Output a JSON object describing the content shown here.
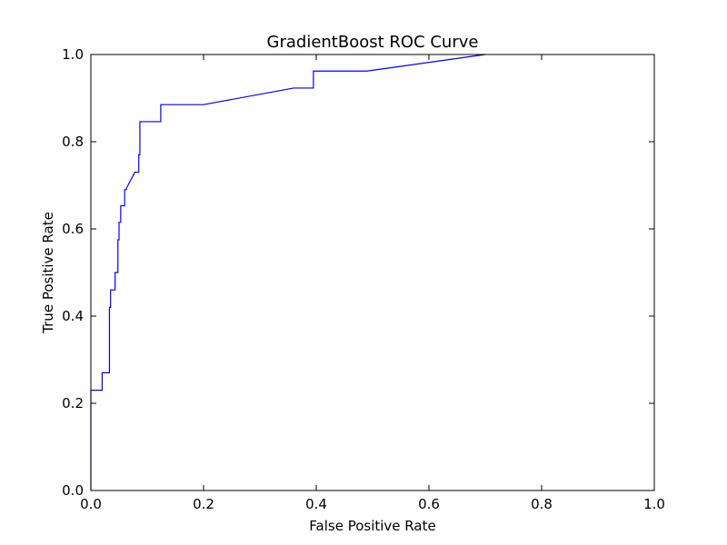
{
  "chart_data": {
    "type": "line",
    "title": "GradientBoost ROC Curve",
    "xlabel": "False Positive Rate",
    "ylabel": "True Positive Rate",
    "xlim": [
      0.0,
      1.0
    ],
    "ylim": [
      0.0,
      1.0
    ],
    "xticks": [
      0.0,
      0.2,
      0.4,
      0.6,
      0.8,
      1.0
    ],
    "yticks": [
      0.0,
      0.2,
      0.4,
      0.6,
      0.8,
      1.0
    ],
    "xtick_labels": [
      "0.0",
      "0.2",
      "0.4",
      "0.6",
      "0.8",
      "1.0"
    ],
    "ytick_labels": [
      "0.0",
      "0.2",
      "0.4",
      "0.6",
      "0.8",
      "1.0"
    ],
    "grid": false,
    "line_color": "#0000ff",
    "series": [
      {
        "x": [
          0.0,
          0.0,
          0.0,
          0.0,
          0.004,
          0.004,
          0.008,
          0.02,
          0.02,
          0.033,
          0.033,
          0.035,
          0.035,
          0.043,
          0.043,
          0.048,
          0.048,
          0.05,
          0.05,
          0.053,
          0.053,
          0.06,
          0.06,
          0.063,
          0.063,
          0.078,
          0.083,
          0.083,
          0.085,
          0.085,
          0.087,
          0.087,
          0.1,
          0.124,
          0.124,
          0.2,
          0.36,
          0.395,
          0.395,
          0.49,
          0.7
        ],
        "y": [
          0.0,
          0.04,
          0.04,
          0.23,
          0.23,
          0.23,
          0.23,
          0.23,
          0.27,
          0.27,
          0.42,
          0.42,
          0.46,
          0.46,
          0.5,
          0.5,
          0.575,
          0.575,
          0.615,
          0.615,
          0.653,
          0.653,
          0.69,
          0.69,
          0.693,
          0.73,
          0.73,
          0.73,
          0.73,
          0.77,
          0.77,
          0.846,
          0.846,
          0.846,
          0.885,
          0.885,
          0.923,
          0.923,
          0.962,
          0.962,
          1.0
        ]
      }
    ]
  }
}
